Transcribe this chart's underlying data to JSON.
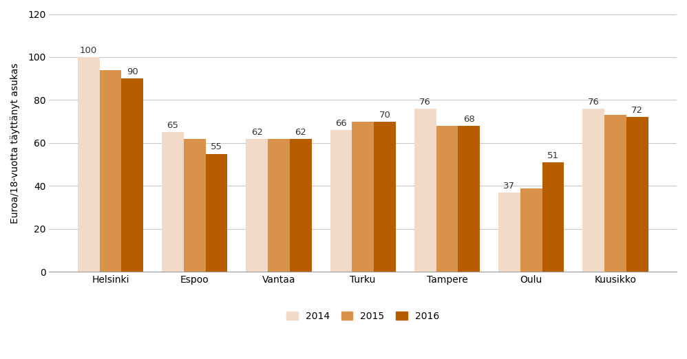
{
  "categories": [
    "Helsinki",
    "Espoo",
    "Vantaa",
    "Turku",
    "Tampere",
    "Oulu",
    "Kuusikko"
  ],
  "series": {
    "2014": [
      100,
      65,
      62,
      66,
      76,
      37,
      76
    ],
    "2015": [
      94,
      62,
      62,
      70,
      68,
      39,
      73
    ],
    "2016": [
      90,
      55,
      62,
      70,
      68,
      51,
      72
    ]
  },
  "labels": {
    "2014": [
      100,
      65,
      62,
      66,
      76,
      37,
      76
    ],
    "2015": [
      null,
      null,
      null,
      null,
      null,
      null,
      null
    ],
    "2016": [
      90,
      55,
      62,
      70,
      68,
      51,
      72
    ]
  },
  "colors": {
    "2014": "#f2dac9",
    "2015": "#d9924a",
    "2016": "#b85c00"
  },
  "ylabel": "Euroa/18-vuotta täyttänyt asukas",
  "ylim": [
    0,
    120
  ],
  "yticks": [
    0,
    20,
    40,
    60,
    80,
    100,
    120
  ],
  "legend_labels": [
    "2014",
    "2015",
    "2016"
  ],
  "bar_width": 0.26,
  "label_fontsize": 9.5,
  "axis_fontsize": 10,
  "tick_fontsize": 10,
  "background_color": "#ffffff",
  "grid_color": "#c8c8c8"
}
